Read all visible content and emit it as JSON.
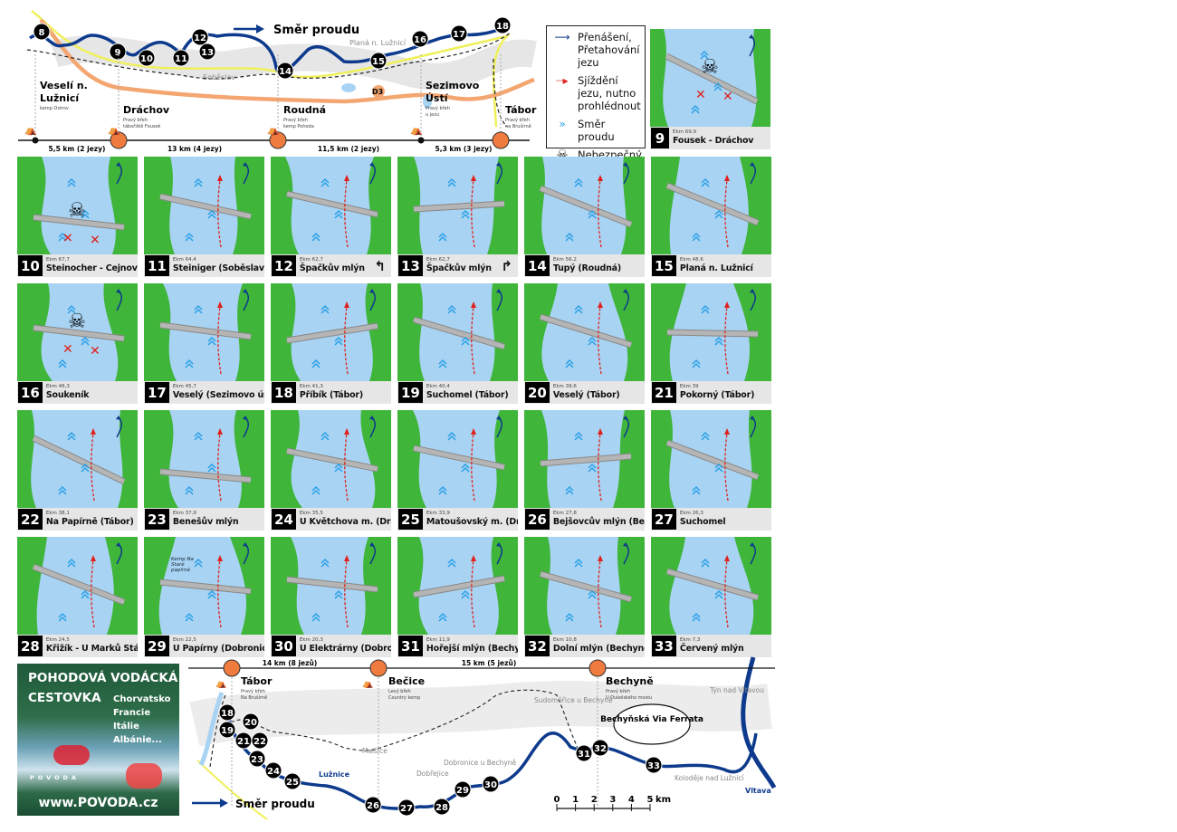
{
  "top_map": {
    "flow_label": "Směr proudu",
    "weir_markers": [
      "8",
      "9",
      "10",
      "11",
      "12",
      "13",
      "14",
      "15",
      "16",
      "17",
      "18"
    ],
    "places": [
      {
        "name": "Veselí n.",
        "name2": "Lužnicí",
        "note": "kemp Ostrov",
        "note2": ""
      },
      {
        "name": "Dráchov",
        "name2": "",
        "note": "Pravý břeh",
        "note2": "tábořiště Fousek"
      },
      {
        "name": "Roudná",
        "name2": "",
        "note": "Pravý břeh",
        "note2": "kemp Pohoda"
      },
      {
        "name": "Sezimovo",
        "name2": "Ústí",
        "note": "Pravý břeh",
        "note2": "u jezu"
      },
      {
        "name": "Tábor",
        "name2": "",
        "note": "Pravý břeh",
        "note2": "na Brušírně"
      }
    ],
    "towns": [
      "Soběslav",
      "Planá n. Lužnicí"
    ],
    "highway": "D3",
    "segments": [
      "5,5 km (2 jezy)",
      "13 km (4 jezy)",
      "11,5 km (2 jezy)",
      "5,3 km (3 jezy)"
    ]
  },
  "legend": {
    "items": [
      {
        "icon": "portage-arrow-icon",
        "label": "Přenášení, Přetahování jezu"
      },
      {
        "icon": "run-weir-dashed-arrow-icon",
        "label": "Sjíždění jezu, nutno prohlédnout"
      },
      {
        "icon": "flow-chevrons-icon",
        "label": "Směr proudu"
      },
      {
        "icon": "skull-icon",
        "label": "Nebezpečný jez"
      }
    ]
  },
  "colors": {
    "water": "#a9d3f2",
    "bank": "#3fb53a",
    "river": "#0d3a8c",
    "weir": "#b5b5b5",
    "danger": "#e0201c",
    "highway": "#f4a671",
    "road": "#f0f05a",
    "stop": "#f07b3f"
  },
  "weirs": [
    {
      "num": "9",
      "ekm": "Ekm 69,9",
      "name": "Fousek - Dráchov",
      "dangerous": true
    },
    {
      "num": "10",
      "ekm": "Ekm 67,7",
      "name": "Steinocher - Cejnov",
      "dangerous": true
    },
    {
      "num": "11",
      "ekm": "Ekm 64,4",
      "name": "Steiniger (Soběslav)",
      "dangerous": false
    },
    {
      "num": "12",
      "ekm": "Ekm 62,7",
      "name": "Špačkův mlýn",
      "dangerous": false,
      "turn": "↰",
      "turn_icon": "turn-left-arrow-icon"
    },
    {
      "num": "13",
      "ekm": "Ekm 62,7",
      "name": "Špačkův mlýn",
      "dangerous": false,
      "turn": "↱",
      "turn_icon": "turn-right-arrow-icon"
    },
    {
      "num": "14",
      "ekm": "Ekm 56,2",
      "name": "Tupý (Roudná)",
      "dangerous": false
    },
    {
      "num": "15",
      "ekm": "Ekm 48,6",
      "name": "Planá n. Lužnicí",
      "dangerous": false
    },
    {
      "num": "16",
      "ekm": "Ekm 46,3",
      "name": "Soukeník",
      "dangerous": true
    },
    {
      "num": "17",
      "ekm": "Ekm 45,7",
      "name": "Veselý (Sezimovo ústí)",
      "dangerous": false
    },
    {
      "num": "18",
      "ekm": "Ekm 41,3",
      "name": "Příbík (Tábor)",
      "dangerous": false
    },
    {
      "num": "19",
      "ekm": "Ekm 40,4",
      "name": "Suchomel (Tábor)",
      "dangerous": false
    },
    {
      "num": "20",
      "ekm": "Ekm 39,6",
      "name": "Veselý (Tábor)",
      "dangerous": false
    },
    {
      "num": "21",
      "ekm": "Ekm 39",
      "name": "Pokorný (Tábor)",
      "dangerous": false
    },
    {
      "num": "22",
      "ekm": "Ekm 38,1",
      "name": "Na Papírně (Tábor)",
      "dangerous": false
    },
    {
      "num": "23",
      "ekm": "Ekm 37,9",
      "name": "Benešův mlýn",
      "dangerous": false
    },
    {
      "num": "24",
      "ekm": "Ekm 35,5",
      "name": "U Květchova m. (Dražice)",
      "dangerous": false
    },
    {
      "num": "25",
      "ekm": "Ekm 33,9",
      "name": "Matoušovský m. (Dražice)",
      "dangerous": false
    },
    {
      "num": "26",
      "ekm": "Ekm 27,8",
      "name": "Bejšovcův mlýn (Bečice)",
      "dangerous": false
    },
    {
      "num": "27",
      "ekm": "Ekm 26,3",
      "name": "Suchomel",
      "dangerous": false
    },
    {
      "num": "28",
      "ekm": "Ekm 24,5",
      "name": "Křižík - U Marků Stádlec",
      "dangerous": false
    },
    {
      "num": "29",
      "ekm": "Ekm 22,5",
      "name": "U Papírny (Dobronice)",
      "dangerous": false,
      "note": "Kemp Na Staré papírně"
    },
    {
      "num": "30",
      "ekm": "Ekm 20,3",
      "name": "U Elektrárny (Dobronice)",
      "dangerous": false
    },
    {
      "num": "31",
      "ekm": "Ekm 11,9",
      "name": "Hořejší mlýn (Bechyně)",
      "dangerous": false
    },
    {
      "num": "32",
      "ekm": "Ekm 10,8",
      "name": "Dolní mlýn (Bechyně)",
      "dangerous": false
    },
    {
      "num": "33",
      "ekm": "Ekm 7,3",
      "name": "Červený mlýn",
      "dangerous": false
    }
  ],
  "ad": {
    "title1": "POHODOVÁ VODÁCKÁ",
    "title2": "CESTOVKA",
    "countries": [
      "Chorvatsko",
      "Francie",
      "Itálie",
      "Albánie..."
    ],
    "logo": "POVODA",
    "url": "www.POVODA.cz"
  },
  "bottom_map": {
    "flow_label": "Směr proudu",
    "weir_markers": [
      "18",
      "19",
      "20",
      "21",
      "22",
      "23",
      "24",
      "25",
      "26",
      "27",
      "28",
      "29",
      "30",
      "31",
      "32",
      "33"
    ],
    "places": [
      {
        "name": "Tábor",
        "note": "Pravý břeh",
        "note2": "Na Brušírně"
      },
      {
        "name": "Bečice",
        "note": "Levý břeh",
        "note2": "Country kemp"
      },
      {
        "name": "Bechyně",
        "note": "Pravý břeh",
        "note2": "U Dukelského mostu"
      }
    ],
    "segments": [
      "14 km (8 jezů)",
      "15 km (5 jezů)"
    ],
    "towns": [
      "Sudoměřice u Bechyně",
      "Týn nad Vltavou",
      "Malšice",
      "Dobřejice",
      "Dobronice u Bechyně",
      "Koloděje nad Lužnicí"
    ],
    "rivers": [
      "Lužnice",
      "Vltava"
    ],
    "callout": "Bechyňská Via Ferrata",
    "scale": {
      "ticks": [
        "0",
        "1",
        "2",
        "3",
        "4",
        "5"
      ],
      "unit": "km"
    }
  }
}
